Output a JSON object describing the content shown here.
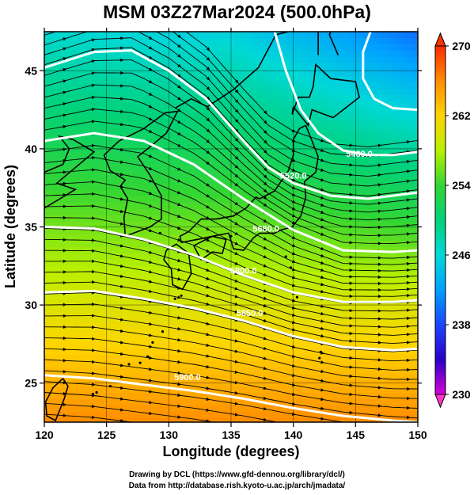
{
  "title": "MSM 03Z27Mar2024 (500.0hPa)",
  "map": {
    "x_axis_title": "Longitude (degrees)",
    "y_axis_title": "Latitude  (degrees)",
    "lon_range": [
      120,
      150
    ],
    "lat_range": [
      22.5,
      47.5
    ],
    "x_ticks": [
      "120",
      "125",
      "130",
      "135",
      "140",
      "145",
      "150"
    ],
    "x_tick_values": [
      120,
      125,
      130,
      135,
      140,
      145,
      150
    ],
    "y_ticks": [
      "25",
      "30",
      "35",
      "40",
      "45"
    ],
    "y_tick_values": [
      25,
      30,
      35,
      40,
      45
    ],
    "grid": true,
    "field": "temperature (K), shaded",
    "overlay": [
      "geopotential height contours (white)",
      "wind streamlines (black)",
      "coastlines"
    ]
  },
  "contours": [
    {
      "label": "5900.0",
      "lon": 131.5,
      "lat": 25.2,
      "points": [
        [
          120,
          25.5
        ],
        [
          124,
          25.3
        ],
        [
          128,
          24.9
        ],
        [
          132,
          24.5
        ],
        [
          136,
          24.0
        ],
        [
          140,
          23.4
        ],
        [
          144,
          22.9
        ],
        [
          148,
          22.6
        ],
        [
          150,
          22.5
        ]
      ]
    },
    {
      "label": "5850.0",
      "lon": 136.5,
      "lat": 29.3,
      "points": [
        [
          120,
          30.8
        ],
        [
          124,
          30.9
        ],
        [
          128,
          30.4
        ],
        [
          132,
          29.8
        ],
        [
          136,
          29.0
        ],
        [
          140,
          28.0
        ],
        [
          144,
          27.3
        ],
        [
          148,
          27.1
        ],
        [
          150,
          27.2
        ]
      ]
    },
    {
      "label": "5800.0",
      "lon": 136.0,
      "lat": 32.0,
      "points": [
        [
          120,
          35.0
        ],
        [
          124,
          34.9
        ],
        [
          128,
          34.2
        ],
        [
          132,
          33.2
        ],
        [
          136,
          31.9
        ],
        [
          140,
          30.8
        ],
        [
          144,
          30.2
        ],
        [
          148,
          30.2
        ],
        [
          150,
          30.3
        ]
      ]
    },
    {
      "label": "5680.0",
      "lon": 137.8,
      "lat": 34.7,
      "points": [
        [
          120,
          40.5
        ],
        [
          124,
          41.0
        ],
        [
          128,
          40.5
        ],
        [
          132,
          39.0
        ],
        [
          136,
          36.8
        ],
        [
          140,
          34.8
        ],
        [
          144,
          33.5
        ],
        [
          148,
          33.4
        ],
        [
          150,
          33.5
        ]
      ]
    },
    {
      "label": "5520.0",
      "lon": 140.0,
      "lat": 38.1,
      "points": [
        [
          120,
          45.2
        ],
        [
          124,
          46.2
        ],
        [
          127,
          46.3
        ],
        [
          130,
          45.0
        ],
        [
          133,
          43.2
        ],
        [
          136,
          40.5
        ],
        [
          138,
          38.8
        ],
        [
          140,
          37.8
        ],
        [
          143,
          37.0
        ],
        [
          146,
          36.8
        ],
        [
          148,
          37.0
        ],
        [
          150,
          37.2
        ]
      ]
    },
    {
      "label": "5460.0",
      "lon": 145.3,
      "lat": 39.5,
      "points": [
        [
          138.5,
          47.5
        ],
        [
          139.4,
          45.0
        ],
        [
          140.6,
          42.5
        ],
        [
          142,
          41.0
        ],
        [
          144,
          39.9
        ],
        [
          146,
          39.6
        ],
        [
          148,
          39.6
        ],
        [
          150,
          39.8
        ]
      ]
    },
    {
      "label": "",
      "lon": 0,
      "lat": 0,
      "points": [
        [
          146.2,
          47.5
        ],
        [
          145.6,
          46.2
        ],
        [
          145.6,
          44.5
        ],
        [
          146.5,
          43.2
        ],
        [
          148,
          42.6
        ],
        [
          150,
          42.5
        ]
      ]
    }
  ],
  "colorbar": {
    "labels": [
      "270",
      "262",
      "254",
      "246",
      "238",
      "230"
    ],
    "values": [
      270,
      262,
      254,
      246,
      238,
      230
    ],
    "min": 230,
    "max": 270
  },
  "footer": {
    "line1": "Drawing by DCL (https://www.gfd-dennou.org/library/dcl/)",
    "line2": "Data from http://database.rish.kyoto-u.ac.jp/arch/jmadata/"
  }
}
